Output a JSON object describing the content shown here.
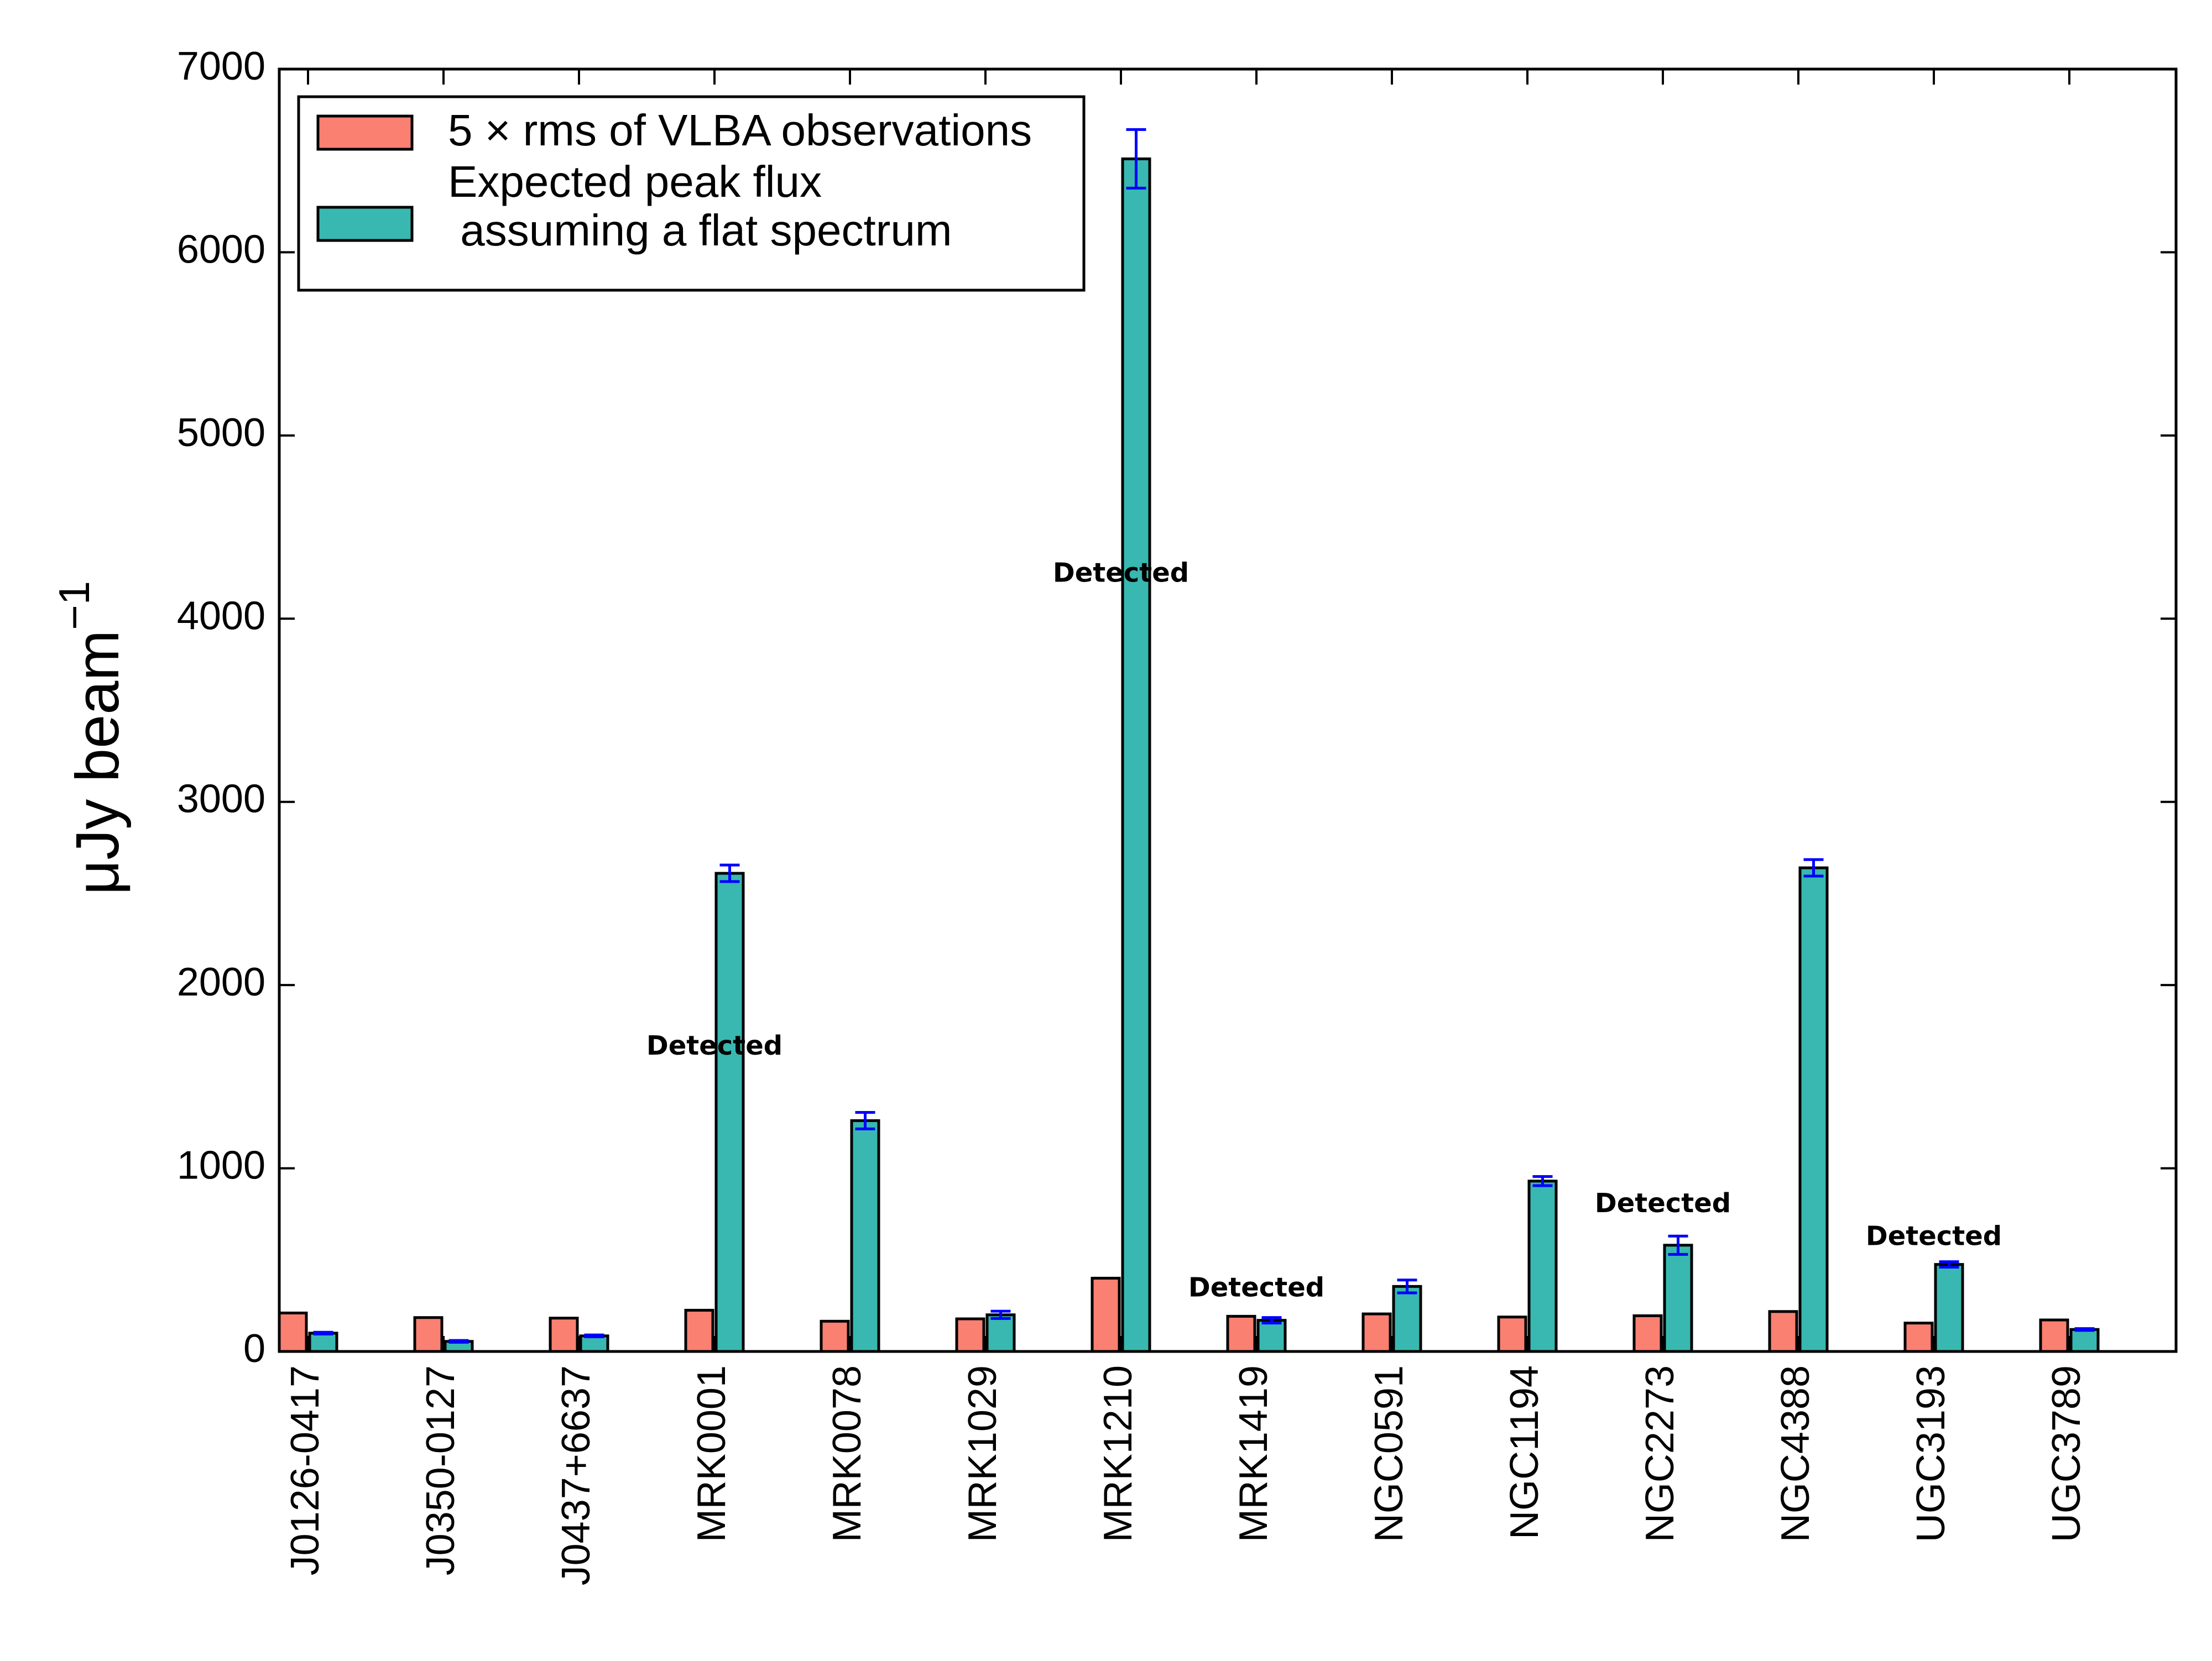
{
  "chart_data": {
    "type": "bar",
    "title": "",
    "xlabel": "",
    "ylabel": "μJy beam",
    "ylabel_superscript": "−1",
    "ylim": [
      0,
      7000
    ],
    "yticks": [
      0,
      1000,
      2000,
      3000,
      4000,
      5000,
      6000,
      7000
    ],
    "categories": [
      "J0126-0417",
      "J0350-0127",
      "J0437+6637",
      "MRK0001",
      "MRK0078",
      "MRK1029",
      "MRK1210",
      "MRK1419",
      "NGC0591",
      "NGC1194",
      "NGC2273",
      "NGC4388",
      "UGC3193",
      "UGC3789"
    ],
    "series": [
      {
        "name": "5 × rms of VLBA observations",
        "color": "#fa8072",
        "values": [
          210,
          185,
          182,
          225,
          165,
          178,
          400,
          192,
          205,
          188,
          195,
          218,
          155,
          172
        ],
        "errors": null
      },
      {
        "name": "Expected peak flux\n assuming a flat spectrum",
        "color": "#38b8b0",
        "values": [
          100,
          55,
          85,
          2610,
          1260,
          200,
          6510,
          170,
          355,
          930,
          580,
          2640,
          475,
          120
        ],
        "errors": [
          5,
          5,
          5,
          45,
          45,
          20,
          160,
          15,
          35,
          25,
          50,
          45,
          15,
          5
        ]
      }
    ],
    "annotations": [
      {
        "category": "MRK0001",
        "text": "Detected",
        "y": 1660
      },
      {
        "category": "MRK1210",
        "text": "Detected",
        "y": 4240
      },
      {
        "category": "MRK1419",
        "text": "Detected",
        "y": 340
      },
      {
        "category": "NGC2273",
        "text": "Detected",
        "y": 800
      },
      {
        "category": "UGC3193",
        "text": "Detected",
        "y": 620
      }
    ],
    "legend": {
      "placement": "top-left",
      "entries": [
        "5 × rms of VLBA observations",
        "Expected peak flux\n assuming a flat spectrum"
      ]
    },
    "grid": false,
    "error_bar_color": "#0000ff"
  }
}
